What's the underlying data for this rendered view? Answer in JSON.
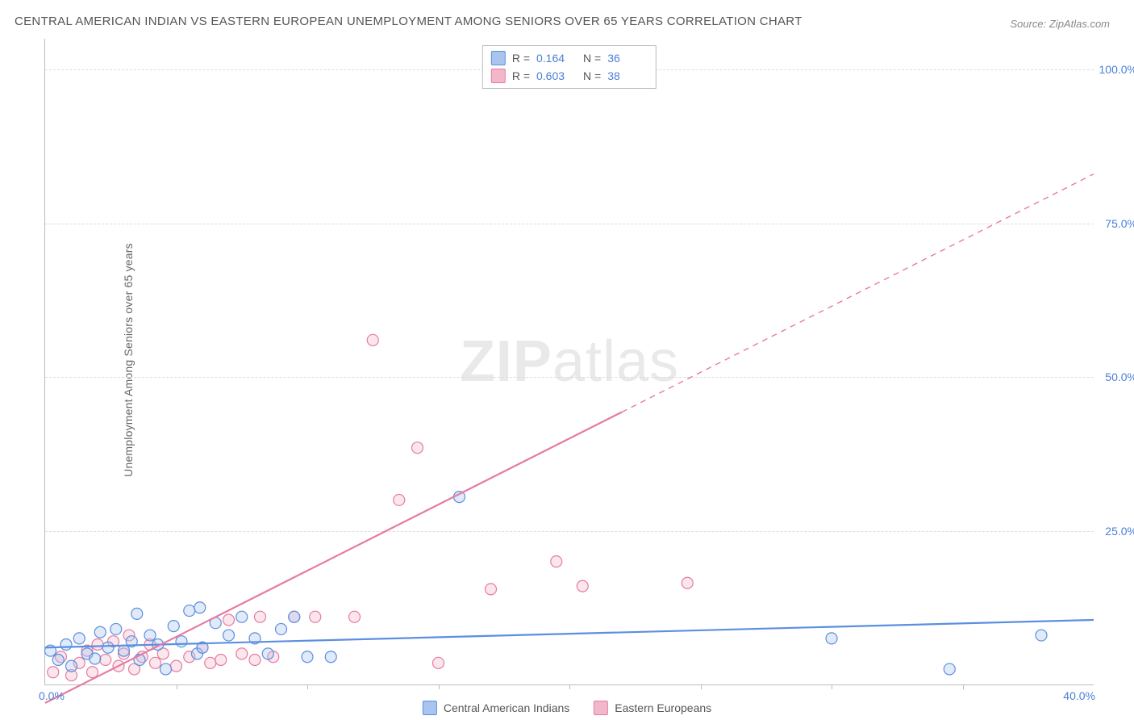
{
  "title": "CENTRAL AMERICAN INDIAN VS EASTERN EUROPEAN UNEMPLOYMENT AMONG SENIORS OVER 65 YEARS CORRELATION CHART",
  "source": "Source: ZipAtlas.com",
  "ylabel": "Unemployment Among Seniors over 65 years",
  "watermark_a": "ZIP",
  "watermark_b": "atlas",
  "chart": {
    "type": "scatter+regression",
    "xlim": [
      0,
      40
    ],
    "ylim": [
      0,
      105
    ],
    "x_origin_label": "0.0%",
    "x_end_label": "40.0%",
    "y_ticks": [
      {
        "v": 25,
        "label": "25.0%"
      },
      {
        "v": 50,
        "label": "50.0%"
      },
      {
        "v": 75,
        "label": "75.0%"
      },
      {
        "v": 100,
        "label": "100.0%"
      }
    ],
    "x_minor_ticks": [
      5,
      10,
      15,
      20,
      25,
      30,
      35
    ],
    "grid_color": "#dddddd",
    "axis_color": "#bbbbbb",
    "tick_text_color": "#4a7fd6",
    "background_color": "#ffffff",
    "marker_radius": 7,
    "marker_stroke_width": 1.2,
    "marker_fill_opacity": 0.35,
    "series": [
      {
        "key": "cai",
        "legend_label": "Central American Indians",
        "color_stroke": "#5b8fe0",
        "color_fill": "#a9c4ef",
        "R": "0.164",
        "N": "36",
        "regression": {
          "x1": 0,
          "y1": 6.0,
          "x2": 40,
          "y2": 10.5,
          "dash": null,
          "width": 2.2
        },
        "points": [
          {
            "x": 0.2,
            "y": 5.5
          },
          {
            "x": 0.5,
            "y": 4.0
          },
          {
            "x": 0.8,
            "y": 6.5
          },
          {
            "x": 1.0,
            "y": 3.0
          },
          {
            "x": 1.3,
            "y": 7.5
          },
          {
            "x": 1.6,
            "y": 5.0
          },
          {
            "x": 1.9,
            "y": 4.2
          },
          {
            "x": 2.1,
            "y": 8.5
          },
          {
            "x": 2.4,
            "y": 6.0
          },
          {
            "x": 2.7,
            "y": 9.0
          },
          {
            "x": 3.0,
            "y": 5.5
          },
          {
            "x": 3.3,
            "y": 7.0
          },
          {
            "x": 3.5,
            "y": 11.5
          },
          {
            "x": 3.6,
            "y": 4.0
          },
          {
            "x": 4.0,
            "y": 8.0
          },
          {
            "x": 4.3,
            "y": 6.5
          },
          {
            "x": 4.6,
            "y": 2.5
          },
          {
            "x": 4.9,
            "y": 9.5
          },
          {
            "x": 5.2,
            "y": 7.0
          },
          {
            "x": 5.5,
            "y": 12.0
          },
          {
            "x": 5.8,
            "y": 5.0
          },
          {
            "x": 5.9,
            "y": 12.5
          },
          {
            "x": 6.0,
            "y": 6.0
          },
          {
            "x": 6.5,
            "y": 10.0
          },
          {
            "x": 7.0,
            "y": 8.0
          },
          {
            "x": 7.5,
            "y": 11.0
          },
          {
            "x": 8.0,
            "y": 7.5
          },
          {
            "x": 8.5,
            "y": 5.0
          },
          {
            "x": 9.0,
            "y": 9.0
          },
          {
            "x": 9.5,
            "y": 11.0
          },
          {
            "x": 10.0,
            "y": 4.5
          },
          {
            "x": 10.9,
            "y": 4.5
          },
          {
            "x": 15.8,
            "y": 30.5
          },
          {
            "x": 30.0,
            "y": 7.5
          },
          {
            "x": 34.5,
            "y": 2.5
          },
          {
            "x": 38.0,
            "y": 8.0
          }
        ]
      },
      {
        "key": "ee",
        "legend_label": "Eastern Europeans",
        "color_stroke": "#e67ba0",
        "color_fill": "#f3b7cb",
        "R": "0.603",
        "N": "38",
        "regression": {
          "x1": 0,
          "y1": -3.0,
          "x2": 40,
          "y2": 83.0,
          "dash_after_x": 22,
          "width": 2.2
        },
        "points": [
          {
            "x": 0.3,
            "y": 2.0
          },
          {
            "x": 0.6,
            "y": 4.5
          },
          {
            "x": 1.0,
            "y": 1.5
          },
          {
            "x": 1.3,
            "y": 3.5
          },
          {
            "x": 1.6,
            "y": 5.5
          },
          {
            "x": 1.8,
            "y": 2.0
          },
          {
            "x": 2.0,
            "y": 6.5
          },
          {
            "x": 2.3,
            "y": 4.0
          },
          {
            "x": 2.6,
            "y": 7.0
          },
          {
            "x": 2.8,
            "y": 3.0
          },
          {
            "x": 3.0,
            "y": 5.0
          },
          {
            "x": 3.2,
            "y": 8.0
          },
          {
            "x": 3.4,
            "y": 2.5
          },
          {
            "x": 3.7,
            "y": 4.5
          },
          {
            "x": 4.0,
            "y": 6.5
          },
          {
            "x": 4.2,
            "y": 3.5
          },
          {
            "x": 4.5,
            "y": 5.0
          },
          {
            "x": 5.0,
            "y": 3.0
          },
          {
            "x": 5.5,
            "y": 4.5
          },
          {
            "x": 6.0,
            "y": 6.0
          },
          {
            "x": 6.3,
            "y": 3.5
          },
          {
            "x": 6.7,
            "y": 4.0
          },
          {
            "x": 7.0,
            "y": 10.5
          },
          {
            "x": 7.5,
            "y": 5.0
          },
          {
            "x": 8.0,
            "y": 4.0
          },
          {
            "x": 8.2,
            "y": 11.0
          },
          {
            "x": 8.7,
            "y": 4.5
          },
          {
            "x": 9.5,
            "y": 11.0
          },
          {
            "x": 10.3,
            "y": 11.0
          },
          {
            "x": 11.8,
            "y": 11.0
          },
          {
            "x": 12.5,
            "y": 56.0
          },
          {
            "x": 13.5,
            "y": 30.0
          },
          {
            "x": 14.2,
            "y": 38.5
          },
          {
            "x": 15.0,
            "y": 3.5
          },
          {
            "x": 17.0,
            "y": 15.5
          },
          {
            "x": 19.5,
            "y": 20.0
          },
          {
            "x": 20.5,
            "y": 16.0
          },
          {
            "x": 24.5,
            "y": 16.5
          }
        ]
      }
    ]
  },
  "legend_top": {
    "R_label": "R  =",
    "N_label": "N  ="
  }
}
